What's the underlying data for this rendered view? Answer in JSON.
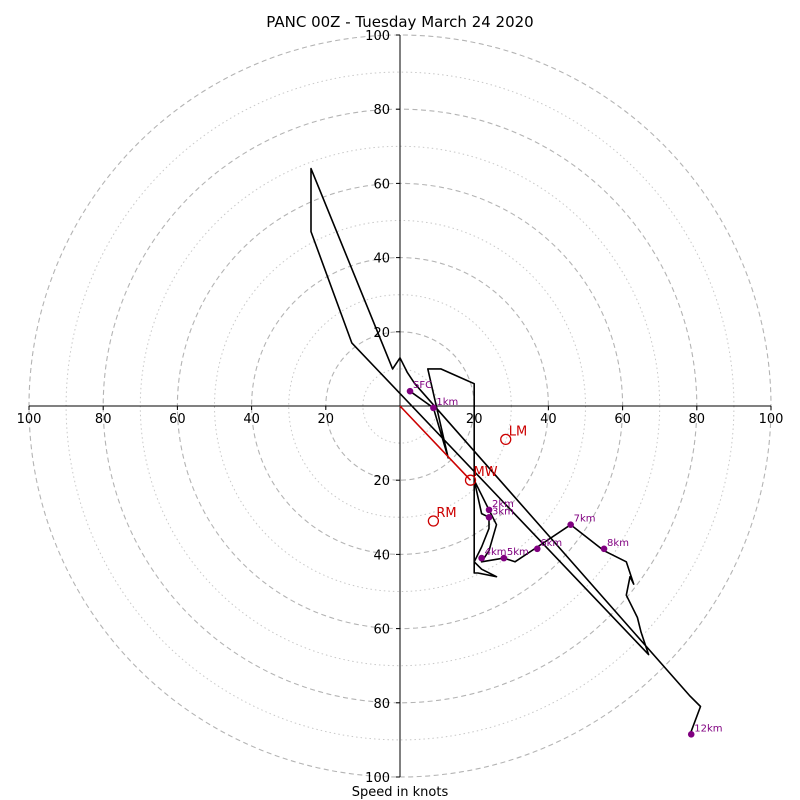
{
  "chart_data": {
    "type": "hodograph",
    "title": "PANC 00Z - Tuesday March 24 2020",
    "xlabel": "Speed in knots",
    "ylabel": "",
    "xlim": [
      -100,
      100
    ],
    "ylim": [
      -100,
      100
    ],
    "grid": true,
    "x_ticks": [
      {
        "value": -100,
        "label": "100"
      },
      {
        "value": -80,
        "label": "80"
      },
      {
        "value": -60,
        "label": "60"
      },
      {
        "value": -40,
        "label": "40"
      },
      {
        "value": -20,
        "label": "20"
      },
      {
        "value": 20,
        "label": "20"
      },
      {
        "value": 40,
        "label": "40"
      },
      {
        "value": 60,
        "label": "60"
      },
      {
        "value": 80,
        "label": "80"
      },
      {
        "value": 100,
        "label": "100"
      }
    ],
    "y_ticks": [
      {
        "value": 100,
        "label": "100"
      },
      {
        "value": 80,
        "label": "80"
      },
      {
        "value": 60,
        "label": "60"
      },
      {
        "value": 40,
        "label": "40"
      },
      {
        "value": 20,
        "label": "20"
      },
      {
        "value": -20,
        "label": "20"
      },
      {
        "value": -40,
        "label": "40"
      },
      {
        "value": -60,
        "label": "60"
      },
      {
        "value": -80,
        "label": "80"
      },
      {
        "value": -100,
        "label": "100"
      }
    ],
    "rings_dashed": [
      20,
      40,
      60,
      80,
      100
    ],
    "rings_dotted": [
      10,
      30,
      50,
      70,
      90
    ],
    "hodograph_line": {
      "color": "#000000",
      "points": [
        [
          2.7,
          4.0
        ],
        [
          9,
          -0.5
        ],
        [
          13,
          -14
        ],
        [
          7.5,
          10
        ],
        [
          11,
          10
        ],
        [
          20,
          6
        ],
        [
          20,
          -20
        ],
        [
          22,
          -29
        ],
        [
          24,
          -30
        ],
        [
          24,
          -33
        ],
        [
          22,
          -38
        ],
        [
          20,
          -42
        ],
        [
          22,
          -44
        ],
        [
          26,
          -46
        ],
        [
          21,
          -45
        ],
        [
          20,
          -45
        ],
        [
          20,
          -20
        ],
        [
          24,
          -28
        ],
        [
          26,
          -32
        ],
        [
          24,
          -39
        ],
        [
          22,
          -42
        ],
        [
          28,
          -41
        ],
        [
          31,
          -42
        ],
        [
          37,
          -38
        ],
        [
          46,
          -32
        ],
        [
          55,
          -39
        ],
        [
          61,
          -42
        ],
        [
          63,
          -48
        ],
        [
          62,
          -46
        ],
        [
          61,
          -51
        ],
        [
          64,
          -57
        ],
        [
          65,
          -61
        ],
        [
          67,
          -67
        ],
        [
          -13,
          17
        ],
        [
          -24,
          47
        ],
        [
          -24,
          64
        ],
        [
          -2,
          10
        ],
        [
          0,
          13
        ],
        [
          2,
          9
        ],
        [
          4,
          6
        ],
        [
          78,
          -78
        ],
        [
          81,
          -81
        ],
        [
          78,
          -89
        ]
      ]
    },
    "height_markers": {
      "color": "#800080",
      "points": [
        {
          "label": "SFC",
          "u": 2.7,
          "v": 4.0
        },
        {
          "label": "1km",
          "u": 9.0,
          "v": -0.5
        },
        {
          "label": "2km",
          "u": 24.0,
          "v": -28.0
        },
        {
          "label": "3km",
          "u": 24.0,
          "v": -30.0
        },
        {
          "label": "4km",
          "u": 22.0,
          "v": -41.0
        },
        {
          "label": "5km",
          "u": 28.0,
          "v": -41.0
        },
        {
          "label": "6km",
          "u": 37.0,
          "v": -38.5
        },
        {
          "label": "7km",
          "u": 46.0,
          "v": -32.0
        },
        {
          "label": "8km",
          "u": 55.0,
          "v": -38.5
        },
        {
          "label": "12km",
          "u": 78.5,
          "v": -88.5
        }
      ]
    },
    "storm_motion": {
      "color": "#cc0000",
      "points": [
        {
          "label": "LM",
          "u": 28.5,
          "v": -9.0
        },
        {
          "label": "MW",
          "u": 19.0,
          "v": -20.0
        },
        {
          "label": "RM",
          "u": 9.0,
          "v": -31.0
        }
      ]
    },
    "mean_wind_vector": {
      "u": 19.0,
      "v": -20.0,
      "color": "#cc0000"
    }
  }
}
